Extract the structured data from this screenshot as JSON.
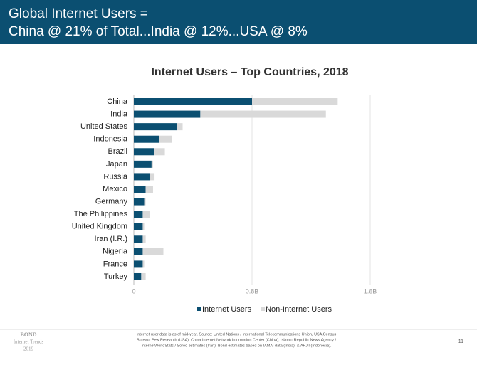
{
  "header": {
    "title_lines": [
      "Global Internet Users =",
      "China @ 21% of Total...India @ 12%...USA @ 8%"
    ]
  },
  "chart_data": {
    "type": "stacked_barh",
    "title": "Internet Users – Top Countries, 2018",
    "categories": [
      "China",
      "India",
      "United States",
      "Indonesia",
      "Brazil",
      "Japan",
      "Russia",
      "Mexico",
      "Germany",
      "The Philippines",
      "United Kingdom",
      "Iran (I.R.)",
      "Nigeria",
      "France",
      "Turkey"
    ],
    "series": [
      {
        "name": "Internet Users",
        "color": "#0b4f71",
        "values": [
          0.8,
          0.45,
          0.29,
          0.17,
          0.14,
          0.12,
          0.11,
          0.08,
          0.07,
          0.06,
          0.06,
          0.06,
          0.06,
          0.06,
          0.05
        ]
      },
      {
        "name": "Non-Internet Users",
        "color": "#d9d9d9",
        "values": [
          0.58,
          0.85,
          0.04,
          0.09,
          0.07,
          0.01,
          0.03,
          0.05,
          0.01,
          0.05,
          0.01,
          0.02,
          0.14,
          0.01,
          0.03
        ]
      }
    ],
    "xlim": [
      0,
      1.6
    ],
    "xticks": [
      0,
      {
        "value": 0.8,
        "label": "0.8B"
      },
      {
        "value": 1.6,
        "label": "1.6B"
      }
    ],
    "grid": true,
    "legend": "bottom"
  },
  "footer": {
    "logo_lines": [
      "BOND",
      "Internet Trends",
      "2019"
    ],
    "note_lines": [
      "Internet user data is as of mid-year.  Source: United Nations / International Telecommunications Union, USA Census",
      "Bureau, Pew Research (USA), China Internet Network Information Center (China), Islamic Republic News Agency /",
      "InternetWorldStats / Sorod estimates (Iran), Bond estimates based on IAMAI data (India), & APJII (Indonesia)."
    ],
    "page_number": "11"
  }
}
